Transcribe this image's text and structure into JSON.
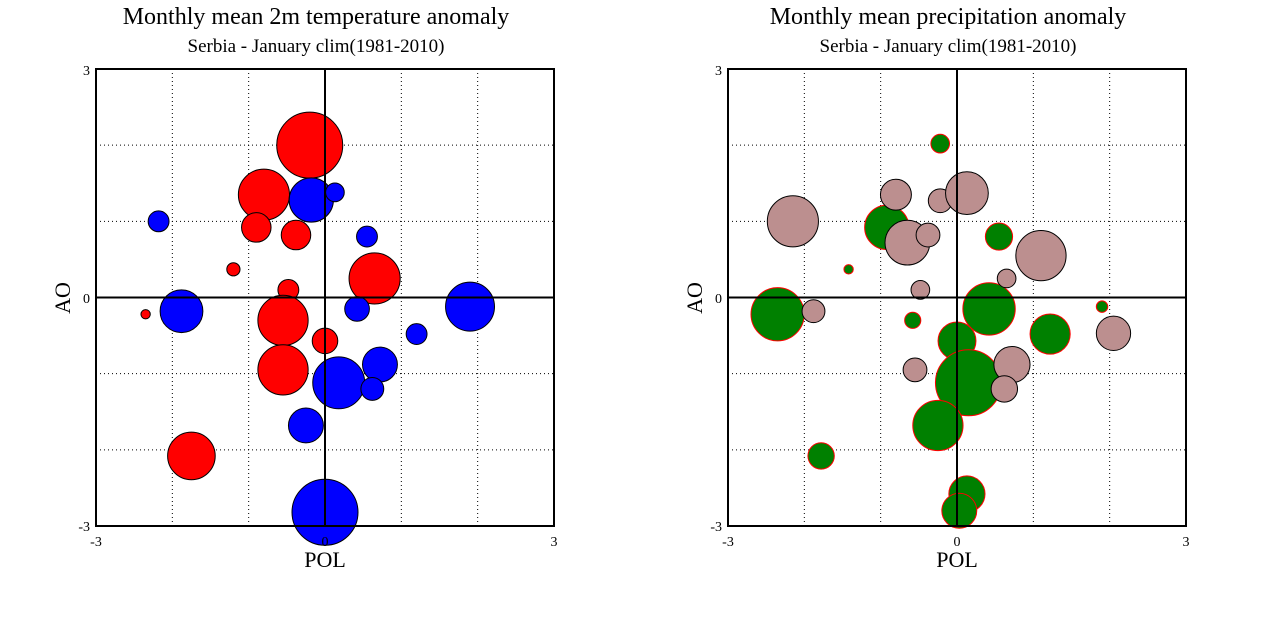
{
  "charts": [
    {
      "title": "Monthly mean 2m temperature anomaly",
      "subtitle": "Serbia - January  clim(1981-2010)",
      "xlabel": "POL",
      "ylabel": "AO",
      "x_tick_labels": [
        "-3",
        "0",
        "3"
      ],
      "y_tick_labels": [
        "3",
        "0",
        "-3"
      ],
      "positive_color": "#ff0000",
      "negative_color": "#0000ff"
    },
    {
      "title": "Monthly mean precipitation anomaly",
      "subtitle": "Serbia - January  clim(1981-2010)",
      "xlabel": "POL",
      "ylabel": "AO",
      "x_tick_labels": [
        "-3",
        "0",
        "3"
      ],
      "y_tick_labels": [
        "3",
        "0",
        "-3"
      ],
      "positive_color": "#008000",
      "negative_color": "#bc8f8f"
    }
  ],
  "chart_data": [
    {
      "type": "scatter",
      "title": "Monthly mean 2m temperature anomaly",
      "subtitle": "Serbia - January  clim(1981-2010)",
      "xlabel": "POL",
      "ylabel": "AO",
      "xlim": [
        -3,
        3
      ],
      "ylim": [
        -3,
        3
      ],
      "grid": true,
      "series": [
        {
          "color": "#ff0000",
          "points": [
            {
              "x": -0.2,
              "y": 2.0,
              "size": 1.0
            },
            {
              "x": -0.8,
              "y": 1.35,
              "size": 0.6
            },
            {
              "x": -0.9,
              "y": 0.92,
              "size": 0.2
            },
            {
              "x": -0.38,
              "y": 0.82,
              "size": 0.2
            },
            {
              "x": 0.65,
              "y": 0.25,
              "size": 0.6
            },
            {
              "x": -1.2,
              "y": 0.37,
              "size": 0.04
            },
            {
              "x": -0.48,
              "y": 0.1,
              "size": 0.1
            },
            {
              "x": -0.55,
              "y": -0.3,
              "size": 0.58
            },
            {
              "x": -2.35,
              "y": -0.22,
              "size": 0.02
            },
            {
              "x": 0.0,
              "y": -0.57,
              "size": 0.15
            },
            {
              "x": -0.55,
              "y": -0.95,
              "size": 0.58
            },
            {
              "x": -1.75,
              "y": -2.08,
              "size": 0.52
            }
          ]
        },
        {
          "color": "#0000ff",
          "points": [
            {
              "x": -0.18,
              "y": 1.28,
              "size": 0.45
            },
            {
              "x": 0.13,
              "y": 1.38,
              "size": 0.08
            },
            {
              "x": -2.18,
              "y": 1.0,
              "size": 0.1
            },
            {
              "x": 0.55,
              "y": 0.8,
              "size": 0.1
            },
            {
              "x": -1.88,
              "y": -0.18,
              "size": 0.42
            },
            {
              "x": 0.42,
              "y": -0.15,
              "size": 0.14
            },
            {
              "x": 1.2,
              "y": -0.48,
              "size": 0.1
            },
            {
              "x": 1.9,
              "y": -0.12,
              "size": 0.55
            },
            {
              "x": 0.72,
              "y": -0.88,
              "size": 0.28
            },
            {
              "x": 0.18,
              "y": -1.12,
              "size": 0.62
            },
            {
              "x": 0.62,
              "y": -1.2,
              "size": 0.12
            },
            {
              "x": -0.25,
              "y": -1.68,
              "size": 0.28
            },
            {
              "x": 0.0,
              "y": -2.82,
              "size": 1.0
            }
          ]
        }
      ]
    },
    {
      "type": "scatter",
      "title": "Monthly mean precipitation anomaly",
      "subtitle": "Serbia - January  clim(1981-2010)",
      "xlabel": "POL",
      "ylabel": "AO",
      "xlim": [
        -3,
        3
      ],
      "ylim": [
        -3,
        3
      ],
      "grid": true,
      "series": [
        {
          "color": "#008000",
          "points": [
            {
              "x": -0.22,
              "y": 2.02,
              "size": 0.08
            },
            {
              "x": -0.92,
              "y": 0.92,
              "size": 0.45
            },
            {
              "x": 0.55,
              "y": 0.8,
              "size": 0.17
            },
            {
              "x": -2.35,
              "y": -0.22,
              "size": 0.65
            },
            {
              "x": 0.42,
              "y": -0.15,
              "size": 0.63
            },
            {
              "x": -0.58,
              "y": -0.3,
              "size": 0.06
            },
            {
              "x": -1.42,
              "y": 0.37,
              "size": 0.02
            },
            {
              "x": 1.9,
              "y": -0.12,
              "size": 0.03
            },
            {
              "x": 1.22,
              "y": -0.48,
              "size": 0.37
            },
            {
              "x": 0.0,
              "y": -0.57,
              "size": 0.33
            },
            {
              "x": 0.15,
              "y": -1.12,
              "size": 1.0
            },
            {
              "x": -0.25,
              "y": -1.68,
              "size": 0.58
            },
            {
              "x": -1.78,
              "y": -2.08,
              "size": 0.16
            },
            {
              "x": 0.13,
              "y": -2.58,
              "size": 0.3
            },
            {
              "x": 0.03,
              "y": -2.8,
              "size": 0.28
            }
          ]
        },
        {
          "color": "#bc8f8f",
          "points": [
            {
              "x": -2.15,
              "y": 1.0,
              "size": 0.6
            },
            {
              "x": -0.8,
              "y": 1.35,
              "size": 0.22
            },
            {
              "x": -0.22,
              "y": 1.27,
              "size": 0.13
            },
            {
              "x": 0.13,
              "y": 1.37,
              "size": 0.42
            },
            {
              "x": -0.65,
              "y": 0.72,
              "size": 0.46
            },
            {
              "x": -0.38,
              "y": 0.82,
              "size": 0.13
            },
            {
              "x": 1.1,
              "y": 0.55,
              "size": 0.58
            },
            {
              "x": 0.65,
              "y": 0.25,
              "size": 0.08
            },
            {
              "x": -0.48,
              "y": 0.1,
              "size": 0.08
            },
            {
              "x": -1.88,
              "y": -0.18,
              "size": 0.12
            },
            {
              "x": 2.05,
              "y": -0.47,
              "size": 0.27
            },
            {
              "x": 0.72,
              "y": -0.88,
              "size": 0.3
            },
            {
              "x": -0.55,
              "y": -0.95,
              "size": 0.13
            },
            {
              "x": 0.62,
              "y": -1.2,
              "size": 0.16
            }
          ]
        }
      ]
    }
  ]
}
